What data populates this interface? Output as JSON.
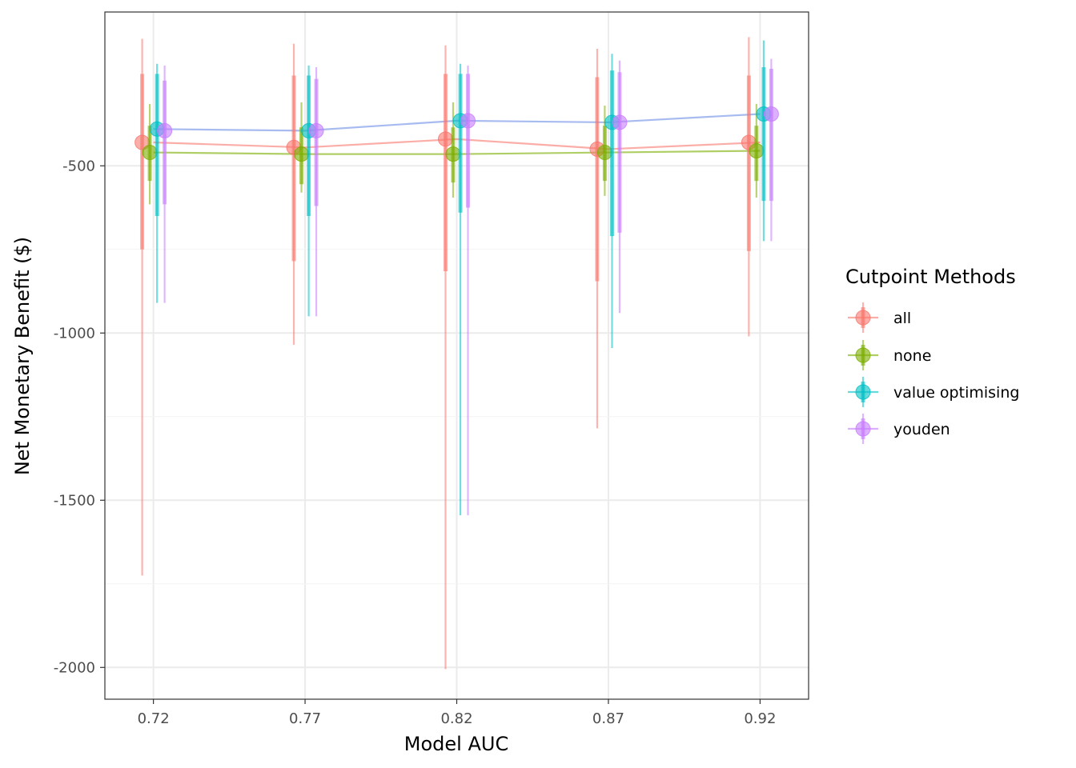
{
  "chart_data": {
    "type": "scatter",
    "xlabel": "Model AUC",
    "ylabel": "Net Monetary Benefit ($)",
    "x": [
      0.72,
      0.77,
      0.82,
      0.87,
      0.92
    ],
    "xlim": [
      0.704,
      0.936
    ],
    "ylim": [
      -2095,
      -40
    ],
    "y_ticks": [
      -500,
      -1000,
      -1500,
      -2000
    ],
    "y_tick_labels": [
      "-500",
      "-1000",
      "-1500",
      "-2000"
    ],
    "x_tick_labels": [
      "0.72",
      "0.77",
      "0.82",
      "0.87",
      "0.92"
    ],
    "grid": true,
    "legend": {
      "title": "Cutpoint Methods",
      "position": "right"
    },
    "dodge": [
      -0.0037,
      -0.0012,
      0.0012,
      0.0037
    ],
    "series": [
      {
        "name": "all",
        "color": "#F8766D",
        "median": [
          -430,
          -445,
          -420,
          -450,
          -430
        ],
        "inner_low": [
          -750,
          -785,
          -815,
          -845,
          -755
        ],
        "inner_high": [
          -225,
          -230,
          -225,
          -235,
          -230
        ],
        "outer_low": [
          -1725,
          -1035,
          -2005,
          -1285,
          -1010
        ],
        "outer_high": [
          -120,
          -135,
          -140,
          -150,
          -115
        ]
      },
      {
        "name": "none",
        "color": "#7CAE00",
        "median": [
          -460,
          -465,
          -465,
          -460,
          -455
        ],
        "inner_low": [
          -545,
          -555,
          -550,
          -545,
          -545
        ],
        "inner_high": [
          -380,
          -385,
          -385,
          -380,
          -380
        ],
        "outer_low": [
          -615,
          -580,
          -595,
          -590,
          -595
        ],
        "outer_high": [
          -315,
          -310,
          -310,
          -320,
          -315
        ]
      },
      {
        "name": "value optimising",
        "color": "#00BFC4",
        "median": [
          -390,
          -395,
          -365,
          -370,
          -345
        ],
        "inner_low": [
          -650,
          -650,
          -640,
          -710,
          -605
        ],
        "inner_high": [
          -225,
          -230,
          -225,
          -215,
          -205
        ],
        "outer_low": [
          -910,
          -950,
          -1545,
          -1045,
          -725
        ],
        "outer_high": [
          -195,
          -200,
          -195,
          -165,
          -125
        ]
      },
      {
        "name": "youden",
        "color": "#C77CFF",
        "median": [
          -395,
          -395,
          -365,
          -370,
          -345
        ],
        "inner_low": [
          -615,
          -620,
          -625,
          -700,
          -605
        ],
        "inner_high": [
          -245,
          -240,
          -225,
          -220,
          -210
        ],
        "outer_low": [
          -910,
          -950,
          -1545,
          -940,
          -725
        ],
        "outer_high": [
          -200,
          -205,
          -200,
          -185,
          -180
        ]
      }
    ],
    "lines": [
      {
        "series": "all",
        "color": "#F8766D",
        "y": [
          -430,
          -445,
          -420,
          -450,
          -430
        ]
      },
      {
        "series": "none",
        "color": "#7CAE00",
        "y": [
          -460,
          -465,
          -465,
          -460,
          -455
        ]
      },
      {
        "series": "value optimising / youden",
        "color": "#6C8EE6",
        "y": [
          -390,
          -395,
          -365,
          -370,
          -345
        ]
      }
    ]
  }
}
